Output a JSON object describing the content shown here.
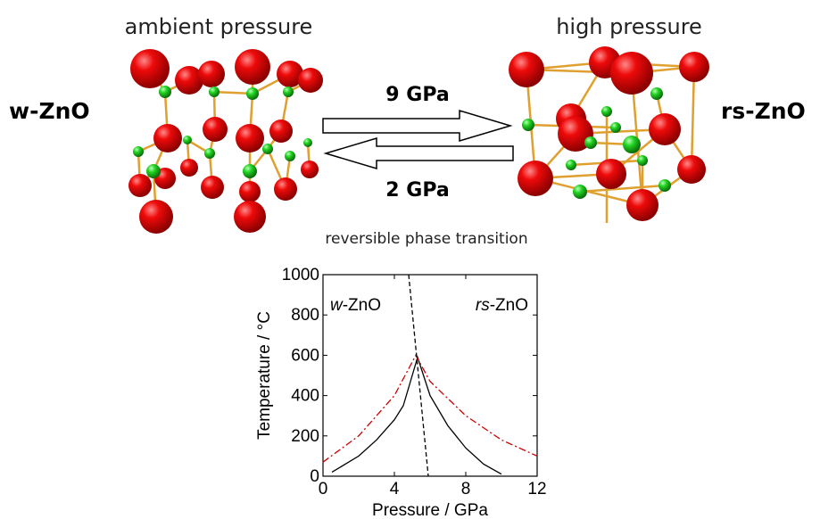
{
  "header": {
    "left_title": "ambient pressure",
    "right_title": "high pressure"
  },
  "phases": {
    "left": "w-ZnO",
    "right": "rs-ZnO"
  },
  "arrows": {
    "forward": "9 GPa",
    "backward": "2 GPa"
  },
  "caption": "reversible phase transition",
  "chart_data": {
    "type": "line",
    "xlabel": "Pressure / GPa",
    "ylabel": "Temperature / °C",
    "annotations": [
      {
        "italic": "w",
        "rest": "-ZnO"
      },
      {
        "italic": "rs",
        "rest": "-ZnO"
      }
    ],
    "xlim": [
      0,
      12
    ],
    "xticks": [
      0,
      4,
      8,
      12
    ],
    "ylim": [
      0,
      1000
    ],
    "yticks": [
      0,
      200,
      400,
      600,
      800,
      1000
    ],
    "series": [
      {
        "style": "solid",
        "color": "#000000",
        "x": [
          0.5,
          2,
          3,
          4,
          4.5,
          5,
          5.3,
          6,
          7,
          8,
          9,
          10
        ],
        "values": [
          20,
          100,
          180,
          280,
          350,
          500,
          590,
          400,
          250,
          140,
          60,
          10
        ]
      },
      {
        "style": "dashdot",
        "color": "#cc0000",
        "x": [
          0,
          2,
          4,
          5.2,
          6,
          8,
          10,
          12
        ],
        "values": [
          70,
          200,
          400,
          600,
          470,
          300,
          180,
          100
        ]
      },
      {
        "style": "dashed",
        "color": "#000000",
        "x": [
          4.8,
          5.9
        ],
        "values": [
          1000,
          0
        ]
      }
    ]
  }
}
